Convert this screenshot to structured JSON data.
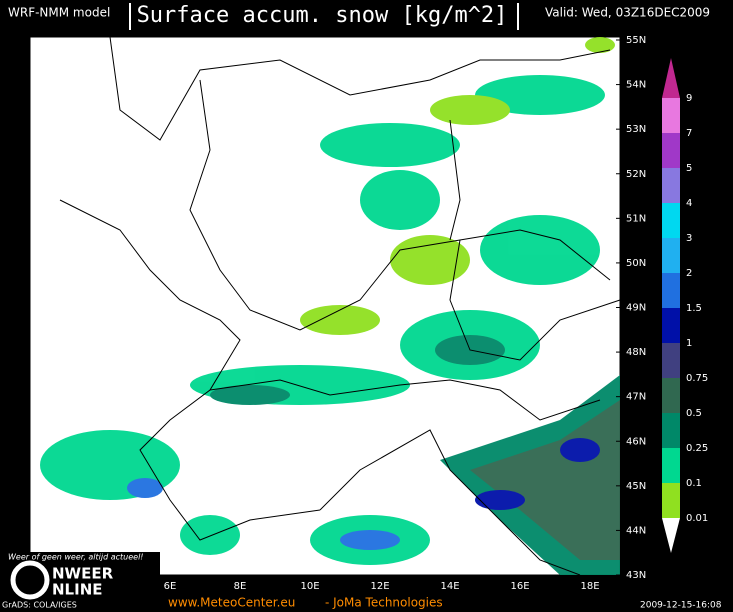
{
  "header": {
    "model": "WRF-NMM model",
    "title": "Surface accum. snow [kg/m^2]",
    "valid": "Valid: Wed, 03Z16DEC2009"
  },
  "lat_labels": [
    "55N",
    "54N",
    "53N",
    "52N",
    "51N",
    "50N",
    "49N",
    "48N",
    "47N",
    "46N",
    "45N",
    "44N",
    "43N"
  ],
  "lon_labels": [
    "6E",
    "8E",
    "10E",
    "12E",
    "14E",
    "16E",
    "18E"
  ],
  "colorbar": [
    {
      "label": "9",
      "color": "#c02890"
    },
    {
      "label": "7",
      "color": "#e878e0"
    },
    {
      "label": "5",
      "color": "#a038c8"
    },
    {
      "label": "4",
      "color": "#8878e0"
    },
    {
      "label": "3",
      "color": "#00d8f0"
    },
    {
      "label": "2",
      "color": "#20b0f0"
    },
    {
      "label": "1.5",
      "color": "#2070e0"
    },
    {
      "label": "1",
      "color": "#0010a8"
    },
    {
      "label": "0.75",
      "color": "#404080"
    },
    {
      "label": "0.5",
      "color": "#306850"
    },
    {
      "label": "0.25",
      "color": "#008868"
    },
    {
      "label": "0.1",
      "color": "#00d890"
    },
    {
      "label": "0.01",
      "color": "#90e020"
    }
  ],
  "logo": {
    "slogan": "Weer of geen weer, altijd actueel!",
    "line1": "NWEER",
    "line2": "NLINE"
  },
  "footer": {
    "grads": "GrADS: COLA/IGES",
    "site": "www.MeteoCenter.eu",
    "company": "- JoMa Technologies",
    "stamp": "2009-12-15-16:08"
  }
}
